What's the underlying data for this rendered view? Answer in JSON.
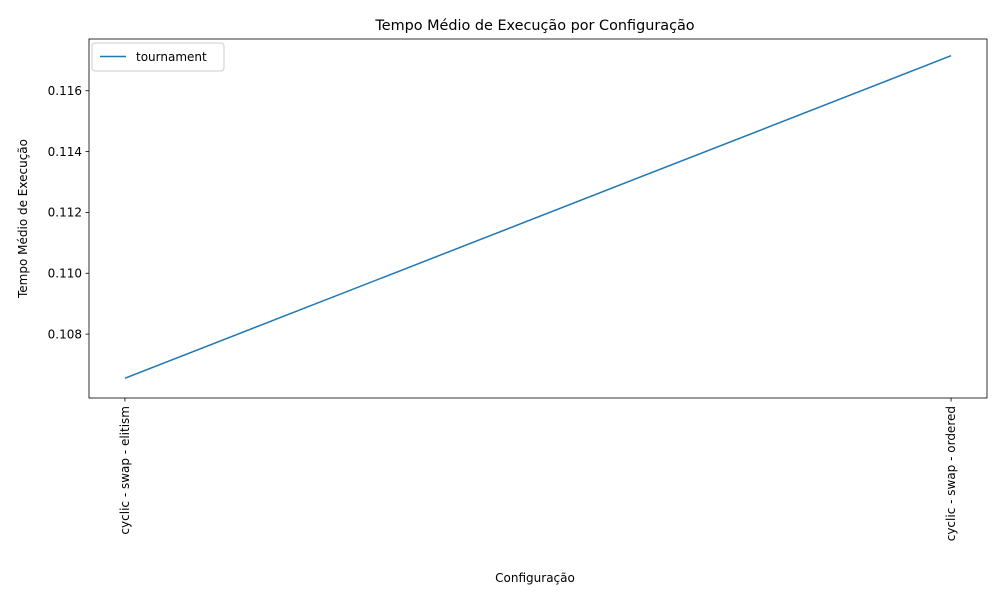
{
  "chart_data": {
    "type": "line",
    "title": "Tempo Médio de Execução por Configuração",
    "xlabel": "Configuração",
    "ylabel": "Tempo Médio de Execução",
    "categories": [
      "cyclic - swap - elitism",
      "cyclic - swap - ordered"
    ],
    "series": [
      {
        "name": "tournament",
        "values": [
          0.10655,
          0.11715
        ],
        "color": "#1f77b4"
      }
    ],
    "ylim": [
      0.1059,
      0.1177
    ],
    "yticks": [
      0.108,
      0.11,
      0.112,
      0.114,
      0.116
    ],
    "ytick_labels": [
      "0.108",
      "0.110",
      "0.112",
      "0.114",
      "0.116"
    ],
    "grid": false,
    "legend_position": "upper-left"
  }
}
